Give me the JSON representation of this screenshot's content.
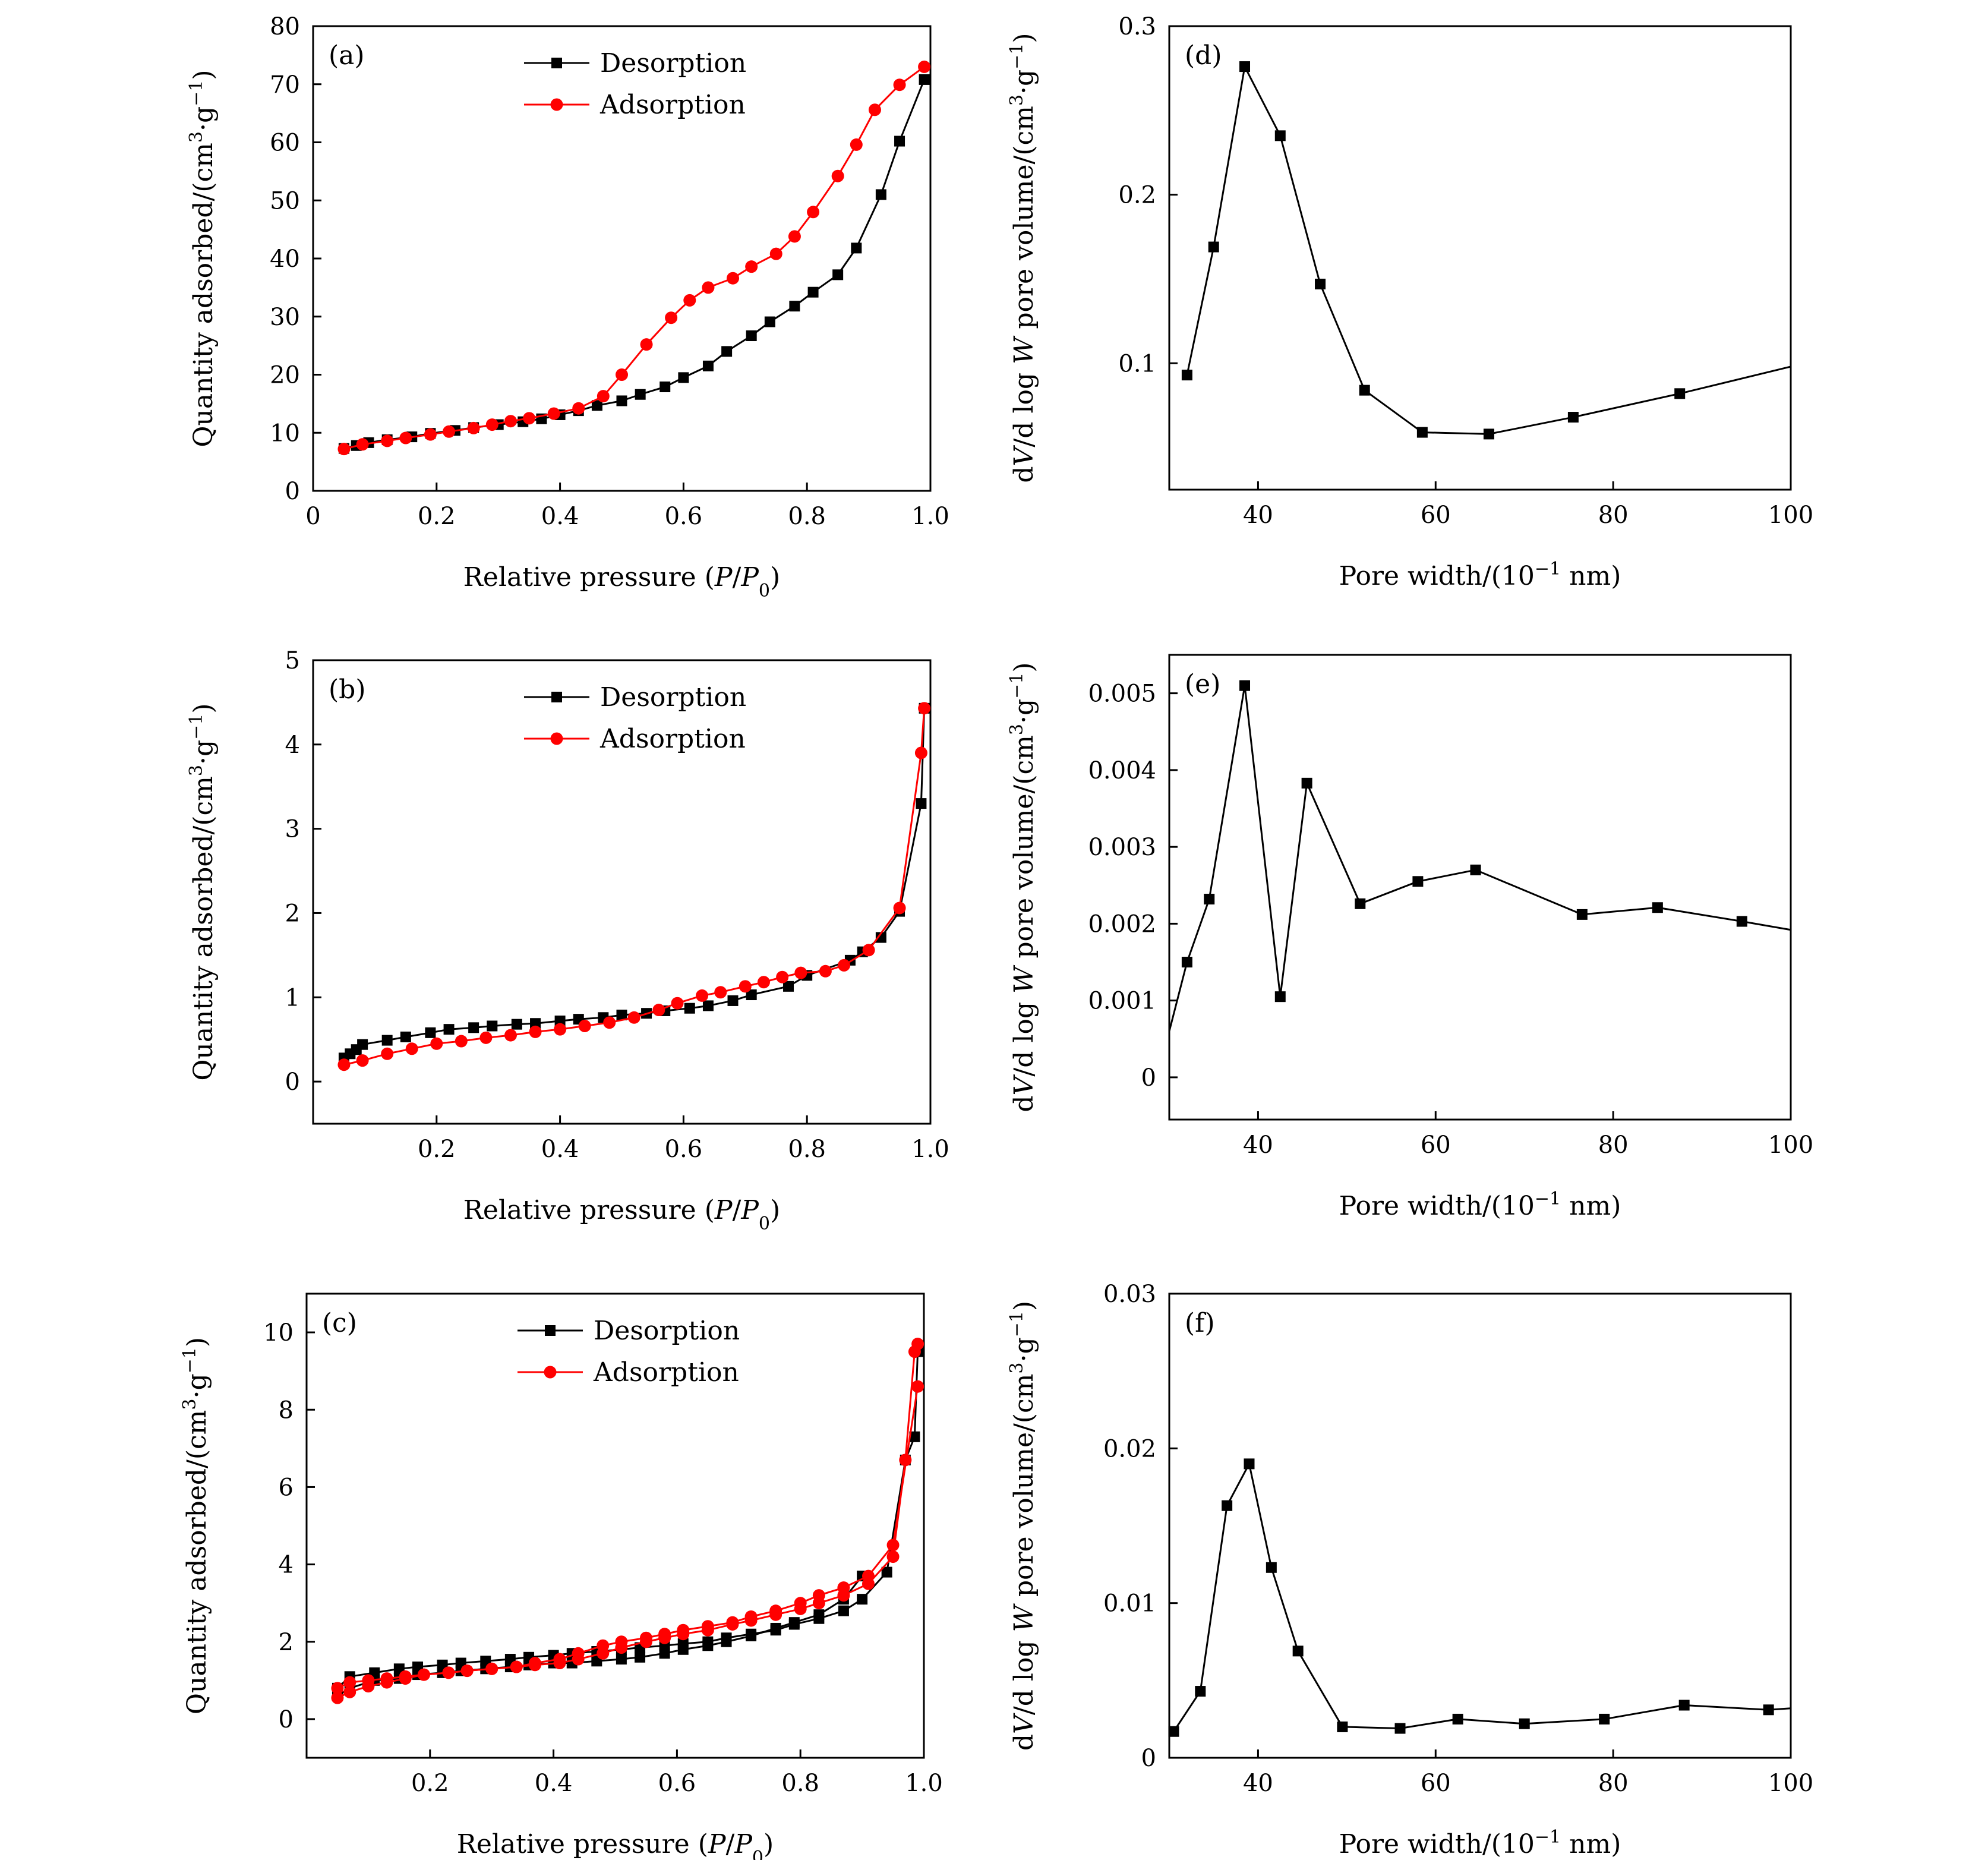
{
  "colors": {
    "desorption": "#000000",
    "adsorption": "#ff0000",
    "line_default": "#000000"
  },
  "chart_data": [
    {
      "id": "a",
      "type": "line",
      "panel_label": "(a)",
      "xlabel": "Relative pressure (P/P0)",
      "ylabel": "Quantity adsorbed/(cm3·g−1)",
      "xlim": [
        0,
        1.0
      ],
      "ylim": [
        0,
        80
      ],
      "xticks": [
        0,
        0.2,
        0.4,
        0.6,
        0.8,
        1.0
      ],
      "xtick_labels": [
        "0",
        "0.2",
        "0.4",
        "0.6",
        "0.8",
        "1.0"
      ],
      "yticks": [
        0,
        10,
        20,
        30,
        40,
        50,
        60,
        70,
        80
      ],
      "ytick_labels": [
        "0",
        "10",
        "20",
        "30",
        "40",
        "50",
        "60",
        "70",
        "80"
      ],
      "grid": false,
      "legend": "top-center",
      "series": [
        {
          "name": "Desorption",
          "marker": "square",
          "color_key": "desorption",
          "x": [
            0.05,
            0.07,
            0.09,
            0.12,
            0.16,
            0.19,
            0.23,
            0.26,
            0.3,
            0.34,
            0.37,
            0.4,
            0.43,
            0.46,
            0.5,
            0.53,
            0.57,
            0.6,
            0.64,
            0.67,
            0.71,
            0.74,
            0.78,
            0.81,
            0.85,
            0.88,
            0.92,
            0.95,
            0.99
          ],
          "y": [
            7.3,
            7.8,
            8.3,
            8.8,
            9.3,
            9.9,
            10.4,
            10.9,
            11.4,
            11.9,
            12.4,
            13.1,
            13.8,
            14.7,
            15.5,
            16.6,
            17.9,
            19.5,
            21.5,
            24,
            26.7,
            29.1,
            31.8,
            34.2,
            37.2,
            41.8,
            51,
            60.2,
            70.8
          ]
        },
        {
          "name": "Adsorption",
          "marker": "circle",
          "color_key": "adsorption",
          "x": [
            0.05,
            0.08,
            0.12,
            0.15,
            0.19,
            0.22,
            0.26,
            0.29,
            0.32,
            0.35,
            0.39,
            0.43,
            0.47,
            0.5,
            0.54,
            0.58,
            0.61,
            0.64,
            0.68,
            0.71,
            0.75,
            0.78,
            0.81,
            0.85,
            0.88,
            0.91,
            0.95,
            0.99
          ],
          "y": [
            7.2,
            8,
            8.6,
            9.1,
            9.7,
            10.2,
            10.8,
            11.4,
            12,
            12.5,
            13.3,
            14.2,
            16.3,
            20,
            25.2,
            29.8,
            32.8,
            35,
            36.6,
            38.6,
            40.8,
            43.8,
            48,
            54.2,
            59.6,
            65.6,
            69.9,
            73
          ]
        }
      ]
    },
    {
      "id": "b",
      "type": "line",
      "panel_label": "(b)",
      "xlabel": "Relative pressure (P/P0)",
      "ylabel": "Quantity adsorbed/(cm3·g−1)",
      "xlim": [
        0,
        1.0
      ],
      "ylim": [
        -0.5,
        5
      ],
      "xticks": [
        0.2,
        0.4,
        0.6,
        0.8,
        1.0
      ],
      "xtick_labels": [
        "0.2",
        "0.4",
        "0.6",
        "0.8",
        "1.0"
      ],
      "yticks": [
        0,
        1,
        2,
        3,
        4,
        5
      ],
      "ytick_labels": [
        "0",
        "1",
        "2",
        "3",
        "4",
        "5"
      ],
      "grid": false,
      "legend": "top-center",
      "series": [
        {
          "name": "Desorption",
          "marker": "square",
          "color_key": "desorption",
          "x": [
            0.05,
            0.06,
            0.07,
            0.08,
            0.12,
            0.15,
            0.19,
            0.22,
            0.26,
            0.29,
            0.33,
            0.36,
            0.4,
            0.43,
            0.47,
            0.5,
            0.54,
            0.57,
            0.61,
            0.64,
            0.68,
            0.71,
            0.77,
            0.8,
            0.87,
            0.89,
            0.92,
            0.95,
            0.985,
            0.99
          ],
          "y": [
            0.28,
            0.33,
            0.38,
            0.44,
            0.49,
            0.53,
            0.58,
            0.62,
            0.64,
            0.66,
            0.68,
            0.69,
            0.72,
            0.74,
            0.76,
            0.79,
            0.81,
            0.84,
            0.87,
            0.9,
            0.96,
            1.03,
            1.13,
            1.26,
            1.44,
            1.54,
            1.71,
            2.02,
            3.3,
            4.43
          ]
        },
        {
          "name": "Adsorption",
          "marker": "circle",
          "color_key": "adsorption",
          "x": [
            0.05,
            0.08,
            0.12,
            0.16,
            0.2,
            0.24,
            0.28,
            0.32,
            0.36,
            0.4,
            0.44,
            0.48,
            0.52,
            0.56,
            0.59,
            0.63,
            0.66,
            0.7,
            0.73,
            0.76,
            0.79,
            0.83,
            0.86,
            0.9,
            0.95,
            0.985,
            0.99
          ],
          "y": [
            0.2,
            0.25,
            0.33,
            0.39,
            0.45,
            0.48,
            0.52,
            0.55,
            0.59,
            0.62,
            0.66,
            0.7,
            0.76,
            0.85,
            0.93,
            1.02,
            1.06,
            1.13,
            1.18,
            1.24,
            1.29,
            1.31,
            1.38,
            1.56,
            2.06,
            3.9,
            4.43
          ]
        }
      ]
    },
    {
      "id": "c",
      "type": "line",
      "panel_label": "(c)",
      "xlabel": "Relative pressure (P/P0)",
      "ylabel": "Quantity adsorbed/(cm3·g−1)",
      "xlim": [
        0,
        1.0
      ],
      "ylim": [
        -1,
        11
      ],
      "xticks": [
        0.2,
        0.4,
        0.6,
        0.8,
        1.0
      ],
      "xtick_labels": [
        "0.2",
        "0.4",
        "0.6",
        "0.8",
        "1.0"
      ],
      "yticks": [
        0,
        2,
        4,
        6,
        8,
        10
      ],
      "ytick_labels": [
        "0",
        "2",
        "4",
        "6",
        "8",
        "10"
      ],
      "grid": false,
      "legend": "top-center",
      "series": [
        {
          "name": "Desorption",
          "marker": "square",
          "color_key": "desorption",
          "x": [
            0.05,
            0.07,
            0.11,
            0.15,
            0.18,
            0.22,
            0.25,
            0.29,
            0.33,
            0.36,
            0.4,
            0.43,
            0.47,
            0.51,
            0.54,
            0.58,
            0.61,
            0.65,
            0.68,
            0.72,
            0.76,
            0.79,
            0.83,
            0.87,
            0.9,
            0.94,
            0.97,
            0.985,
            0.99
          ],
          "y": [
            0.8,
            1.1,
            1.2,
            1.3,
            1.35,
            1.4,
            1.45,
            1.5,
            1.55,
            1.6,
            1.65,
            1.7,
            1.75,
            1.8,
            1.85,
            1.9,
            1.95,
            2.0,
            2.1,
            2.2,
            2.3,
            2.45,
            2.6,
            2.8,
            3.1,
            3.8,
            6.7,
            7.3,
            9.5
          ],
          "extra": {
            "x": [
              0.05,
              0.07,
              0.11,
              0.15,
              0.18,
              0.22,
              0.25,
              0.29,
              0.33,
              0.36,
              0.4,
              0.43,
              0.47,
              0.51,
              0.54,
              0.58,
              0.61,
              0.65,
              0.68,
              0.72,
              0.76,
              0.79,
              0.83,
              0.87,
              0.9
            ],
            "y": [
              0.6,
              0.8,
              1.0,
              1.05,
              1.15,
              1.2,
              1.25,
              1.3,
              1.35,
              1.4,
              1.45,
              1.45,
              1.5,
              1.55,
              1.6,
              1.7,
              1.8,
              1.9,
              2.0,
              2.15,
              2.35,
              2.5,
              2.7,
              3.1,
              3.7
            ]
          }
        },
        {
          "name": "Adsorption",
          "marker": "circle",
          "color_key": "adsorption",
          "x": [
            0.05,
            0.07,
            0.1,
            0.13,
            0.16,
            0.19,
            0.23,
            0.26,
            0.3,
            0.34,
            0.37,
            0.41,
            0.44,
            0.48,
            0.51,
            0.55,
            0.58,
            0.61,
            0.65,
            0.69,
            0.72,
            0.76,
            0.8,
            0.83,
            0.87,
            0.91,
            0.95,
            0.97,
            0.985,
            0.99
          ],
          "y": [
            0.55,
            0.7,
            0.85,
            0.95,
            1.05,
            1.15,
            1.2,
            1.25,
            1.3,
            1.35,
            1.4,
            1.45,
            1.55,
            1.7,
            1.85,
            2.0,
            2.1,
            2.2,
            2.3,
            2.45,
            2.55,
            2.7,
            2.85,
            3.0,
            3.2,
            3.5,
            4.2,
            6.7,
            9.5,
            9.7
          ],
          "extra": {
            "x": [
              0.05,
              0.07,
              0.1,
              0.13,
              0.16,
              0.19,
              0.23,
              0.26,
              0.3,
              0.34,
              0.37,
              0.41,
              0.44,
              0.48,
              0.51,
              0.55,
              0.58,
              0.61,
              0.65,
              0.69,
              0.72,
              0.76,
              0.8,
              0.83,
              0.87,
              0.91,
              0.95,
              0.99
            ],
            "y": [
              0.8,
              0.95,
              1.0,
              1.05,
              1.1,
              1.15,
              1.2,
              1.25,
              1.3,
              1.35,
              1.45,
              1.55,
              1.7,
              1.9,
              2.0,
              2.1,
              2.2,
              2.3,
              2.4,
              2.5,
              2.65,
              2.8,
              3.0,
              3.2,
              3.4,
              3.7,
              4.5,
              8.6
            ]
          }
        }
      ]
    },
    {
      "id": "d",
      "type": "line",
      "panel_label": "(d)",
      "xlabel": "Pore width/(10−1 nm)",
      "ylabel": "dV/d log W pore volume/(cm3·g−1)",
      "xlim": [
        30,
        100
      ],
      "ylim": [
        0.025,
        0.3
      ],
      "xticks": [
        40,
        60,
        80,
        100
      ],
      "xtick_labels": [
        "40",
        "60",
        "80",
        "100"
      ],
      "yticks": [
        0.1,
        0.2,
        0.3
      ],
      "ytick_labels": [
        "0.1",
        "0.2",
        "0.3"
      ],
      "grid": false,
      "legend": "none",
      "series": [
        {
          "marker": "square",
          "color_key": "line_default",
          "x": [
            32,
            35,
            38.5,
            42.5,
            47,
            52,
            58.5,
            66,
            75.5,
            87.5
          ],
          "y": [
            0.093,
            0.169,
            0.276,
            0.235,
            0.147,
            0.084,
            0.059,
            0.058,
            0.068,
            0.082
          ],
          "line_extends_to": [
            100,
            0.098
          ]
        }
      ]
    },
    {
      "id": "e",
      "type": "line",
      "panel_label": "(e)",
      "xlabel": "Pore width/(10−1 nm)",
      "ylabel": "dV/d log W pore volume/(cm3·g−1)",
      "xlim": [
        30,
        100
      ],
      "ylim": [
        -0.00055,
        0.0055
      ],
      "xticks": [
        40,
        60,
        80,
        100
      ],
      "xtick_labels": [
        "40",
        "60",
        "80",
        "100"
      ],
      "yticks": [
        0,
        0.001,
        0.002,
        0.003,
        0.004,
        0.005
      ],
      "ytick_labels": [
        "0",
        "0.001",
        "0.002",
        "0.003",
        "0.004",
        "0.005"
      ],
      "grid": false,
      "legend": "none",
      "series": [
        {
          "marker": "square",
          "color_key": "line_default",
          "x": [
            32,
            34.5,
            38.5,
            42.5,
            45.5,
            51.5,
            58,
            64.5,
            76.5,
            85,
            94.5
          ],
          "y": [
            0.0015,
            0.00232,
            0.0051,
            0.00105,
            0.00383,
            0.00226,
            0.00255,
            0.0027,
            0.00212,
            0.00221,
            0.00203
          ],
          "line_starts_at": [
            30,
            0.0006
          ],
          "line_extends_to": [
            100,
            0.00192
          ]
        }
      ]
    },
    {
      "id": "f",
      "type": "line",
      "panel_label": "(f)",
      "xlabel": "Pore width/(10−1 nm)",
      "ylabel": "dV/d log W pore volume/(cm3·g−1)",
      "xlim": [
        30,
        100
      ],
      "ylim": [
        0,
        0.03
      ],
      "xticks": [
        40,
        60,
        80,
        100
      ],
      "xtick_labels": [
        "40",
        "60",
        "80",
        "100"
      ],
      "yticks": [
        0,
        0.01,
        0.02,
        0.03
      ],
      "ytick_labels": [
        "0",
        "0.01",
        "0.02",
        "0.03"
      ],
      "grid": false,
      "legend": "none",
      "series": [
        {
          "marker": "square",
          "color_key": "line_default",
          "x": [
            30.5,
            33.5,
            36.5,
            39,
            41.5,
            44.5,
            49.5,
            56,
            62.5,
            70,
            79,
            88,
            97.5
          ],
          "y": [
            0.0017,
            0.0043,
            0.0163,
            0.019,
            0.0123,
            0.0069,
            0.002,
            0.0019,
            0.0025,
            0.0022,
            0.0025,
            0.0034,
            0.0031
          ],
          "line_extends_to": [
            100,
            0.0032
          ]
        }
      ]
    }
  ]
}
